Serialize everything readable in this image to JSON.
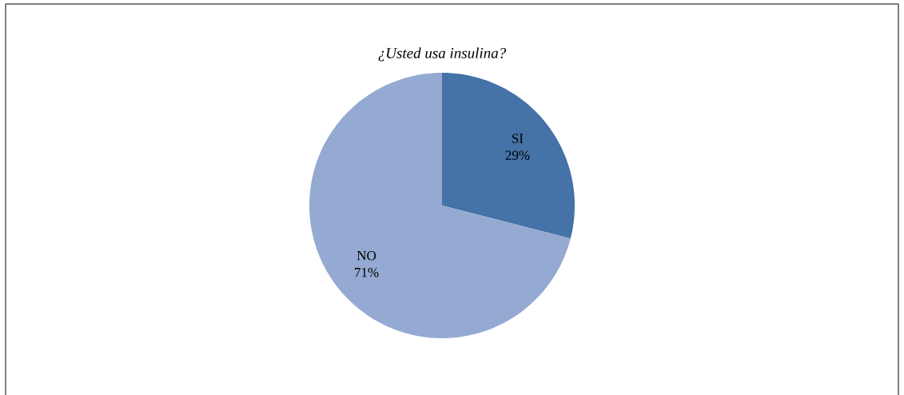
{
  "chart_data": {
    "type": "pie",
    "title": "¿Usted usa insulina?",
    "categories": [
      "SI",
      "NO"
    ],
    "values": [
      29,
      71
    ],
    "value_labels": [
      "29%",
      "71%"
    ],
    "colors": [
      "#4572a7",
      "#95aad2"
    ]
  }
}
